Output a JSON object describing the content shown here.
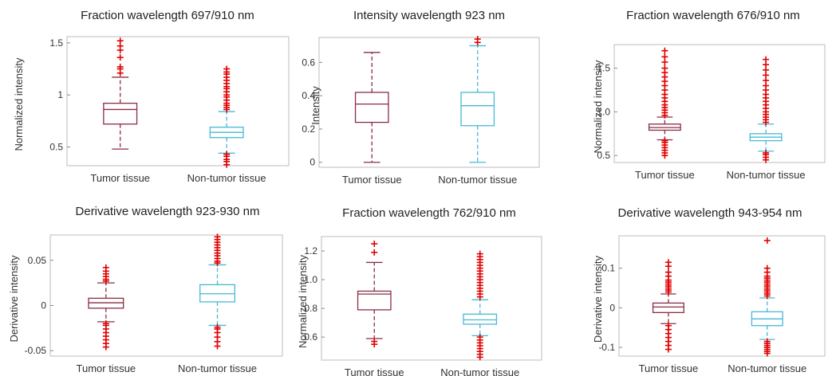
{
  "colors": {
    "tumor": "#8a2e45",
    "nontumor": "#47b9d6",
    "outlier": "#e00000",
    "axis": "#bdbdbd"
  },
  "chart_data": [
    {
      "type": "box",
      "title": "Fraction wavelength 697/910 nm",
      "ylabel": "Normalized intensity",
      "categories": [
        "Tumor tissue",
        "Non-tumor tissue"
      ],
      "ylim": [
        0.32,
        1.56
      ],
      "yticks": [
        0.5,
        1,
        1.5
      ],
      "ytick_labels": [
        "0.5",
        "1",
        "1.5"
      ],
      "boxes": [
        {
          "whisker_low": 0.48,
          "q1": 0.72,
          "median": 0.86,
          "q3": 0.92,
          "whisker_high": 1.17,
          "outliers": [
            1.21,
            1.25,
            1.27,
            1.36,
            1.43,
            1.47,
            1.52
          ]
        },
        {
          "whisker_low": 0.44,
          "q1": 0.59,
          "median": 0.64,
          "q3": 0.69,
          "whisker_high": 0.84,
          "outliers": [
            0.33,
            0.36,
            0.38,
            0.41,
            0.43,
            0.86,
            0.88,
            0.9,
            0.92,
            0.95,
            0.98,
            1.0,
            1.03,
            1.06,
            1.08,
            1.11,
            1.14,
            1.17,
            1.2,
            1.22,
            1.25
          ]
        }
      ]
    },
    {
      "type": "box",
      "title": "Intensity wavelength 923 nm",
      "ylabel": "Intensity",
      "categories": [
        "Tumor tissue",
        "Non-tumor tissue"
      ],
      "ylim": [
        -0.03,
        0.75
      ],
      "yticks": [
        0,
        0.2,
        0.4,
        0.6
      ],
      "ytick_labels": [
        "0",
        "0.2",
        "0.4",
        "0.6"
      ],
      "boxes": [
        {
          "whisker_low": 0.0,
          "q1": 0.24,
          "median": 0.35,
          "q3": 0.42,
          "whisker_high": 0.66,
          "outliers": []
        },
        {
          "whisker_low": 0.0,
          "q1": 0.22,
          "median": 0.34,
          "q3": 0.42,
          "whisker_high": 0.7,
          "outliers": [
            0.72,
            0.74
          ]
        }
      ]
    },
    {
      "type": "box",
      "title": "Fraction wavelength 676/910 nm",
      "ylabel": "Normalized intensity",
      "categories": [
        "Tumor tissue",
        "Non-tumor tissue"
      ],
      "ylim": [
        0.42,
        1.77
      ],
      "yticks": [
        0.5,
        1.0,
        1.5
      ],
      "ytick_labels": [
        "0.5",
        "1.0",
        "1.5"
      ],
      "boxes": [
        {
          "whisker_low": 0.68,
          "q1": 0.79,
          "median": 0.82,
          "q3": 0.86,
          "whisker_high": 0.94,
          "outliers": [
            0.5,
            0.53,
            0.56,
            0.59,
            0.62,
            0.65,
            0.67,
            0.96,
            0.99,
            1.02,
            1.05,
            1.08,
            1.12,
            1.16,
            1.2,
            1.25,
            1.3,
            1.35,
            1.4,
            1.45,
            1.5,
            1.57,
            1.63,
            1.7
          ]
        },
        {
          "whisker_low": 0.55,
          "q1": 0.67,
          "median": 0.71,
          "q3": 0.75,
          "whisker_high": 0.86,
          "outliers": [
            0.45,
            0.48,
            0.51,
            0.53,
            0.88,
            0.91,
            0.94,
            0.97,
            1.0,
            1.04,
            1.08,
            1.12,
            1.16,
            1.2,
            1.25,
            1.3,
            1.36,
            1.42,
            1.48,
            1.54,
            1.6
          ]
        }
      ]
    },
    {
      "type": "box",
      "title": "Derivative wavelength 923-930 nm",
      "ylabel": "Derivative intensity",
      "categories": [
        "Tumor tissue",
        "Non-tumor tissue"
      ],
      "ylim": [
        -0.056,
        0.078
      ],
      "yticks": [
        -0.05,
        0,
        0.05
      ],
      "ytick_labels": [
        "-0.05",
        "0",
        "0.05"
      ],
      "boxes": [
        {
          "whisker_low": -0.018,
          "q1": -0.003,
          "median": 0.003,
          "q3": 0.008,
          "whisker_high": 0.025,
          "outliers": [
            -0.046,
            -0.042,
            -0.038,
            -0.034,
            -0.03,
            -0.026,
            -0.022,
            -0.02,
            0.027,
            0.029,
            0.032,
            0.035,
            0.038,
            0.042
          ]
        },
        {
          "whisker_low": -0.022,
          "q1": 0.004,
          "median": 0.013,
          "q3": 0.023,
          "whisker_high": 0.045,
          "outliers": [
            -0.045,
            -0.04,
            -0.035,
            -0.03,
            -0.026,
            -0.024,
            0.047,
            0.049,
            0.052,
            0.055,
            0.058,
            0.061,
            0.064,
            0.067,
            0.07,
            0.073,
            0.076
          ]
        }
      ]
    },
    {
      "type": "box",
      "title": "Fraction wavelength 762/910 nm",
      "ylabel": "Normalized intensity",
      "categories": [
        "Tumor tissue",
        "Non-tumor tissue"
      ],
      "ylim": [
        0.44,
        1.3
      ],
      "yticks": [
        0.6,
        0.8,
        1.0,
        1.2
      ],
      "ytick_labels": [
        "0.6",
        "0.8",
        "1.0",
        "1.2"
      ],
      "boxes": [
        {
          "whisker_low": 0.59,
          "q1": 0.79,
          "median": 0.9,
          "q3": 0.92,
          "whisker_high": 1.12,
          "outliers": [
            0.55,
            0.57,
            1.19,
            1.25
          ]
        },
        {
          "whisker_low": 0.61,
          "q1": 0.69,
          "median": 0.72,
          "q3": 0.76,
          "whisker_high": 0.86,
          "outliers": [
            0.46,
            0.48,
            0.5,
            0.52,
            0.54,
            0.56,
            0.58,
            0.6,
            0.88,
            0.9,
            0.92,
            0.94,
            0.96,
            0.98,
            1.0,
            1.02,
            1.04,
            1.06,
            1.08,
            1.1,
            1.12,
            1.14,
            1.16,
            1.18
          ]
        }
      ]
    },
    {
      "type": "box",
      "title": "Derivative wavelength 943-954 nm",
      "ylabel": "Derivative intensity",
      "categories": [
        "Tumor tissue",
        "Non-tumor tissue"
      ],
      "ylim": [
        -0.122,
        0.182
      ],
      "yticks": [
        -0.1,
        0,
        0.1
      ],
      "ytick_labels": [
        "-0.1",
        "0",
        "0.1"
      ],
      "boxes": [
        {
          "whisker_low": -0.04,
          "q1": -0.012,
          "median": 0.002,
          "q3": 0.012,
          "whisker_high": 0.035,
          "outliers": [
            -0.105,
            -0.095,
            -0.085,
            -0.075,
            -0.065,
            -0.055,
            -0.045,
            0.04,
            0.045,
            0.05,
            0.055,
            0.06,
            0.065,
            0.07,
            0.08,
            0.09,
            0.105,
            0.115
          ]
        },
        {
          "whisker_low": -0.08,
          "q1": -0.045,
          "median": -0.028,
          "q3": -0.01,
          "whisker_high": 0.025,
          "outliers": [
            -0.115,
            -0.11,
            -0.105,
            -0.1,
            -0.095,
            -0.09,
            -0.085,
            0.03,
            0.035,
            0.04,
            0.045,
            0.05,
            0.055,
            0.06,
            0.065,
            0.07,
            0.075,
            0.08,
            0.09,
            0.1,
            0.17
          ]
        }
      ]
    }
  ]
}
